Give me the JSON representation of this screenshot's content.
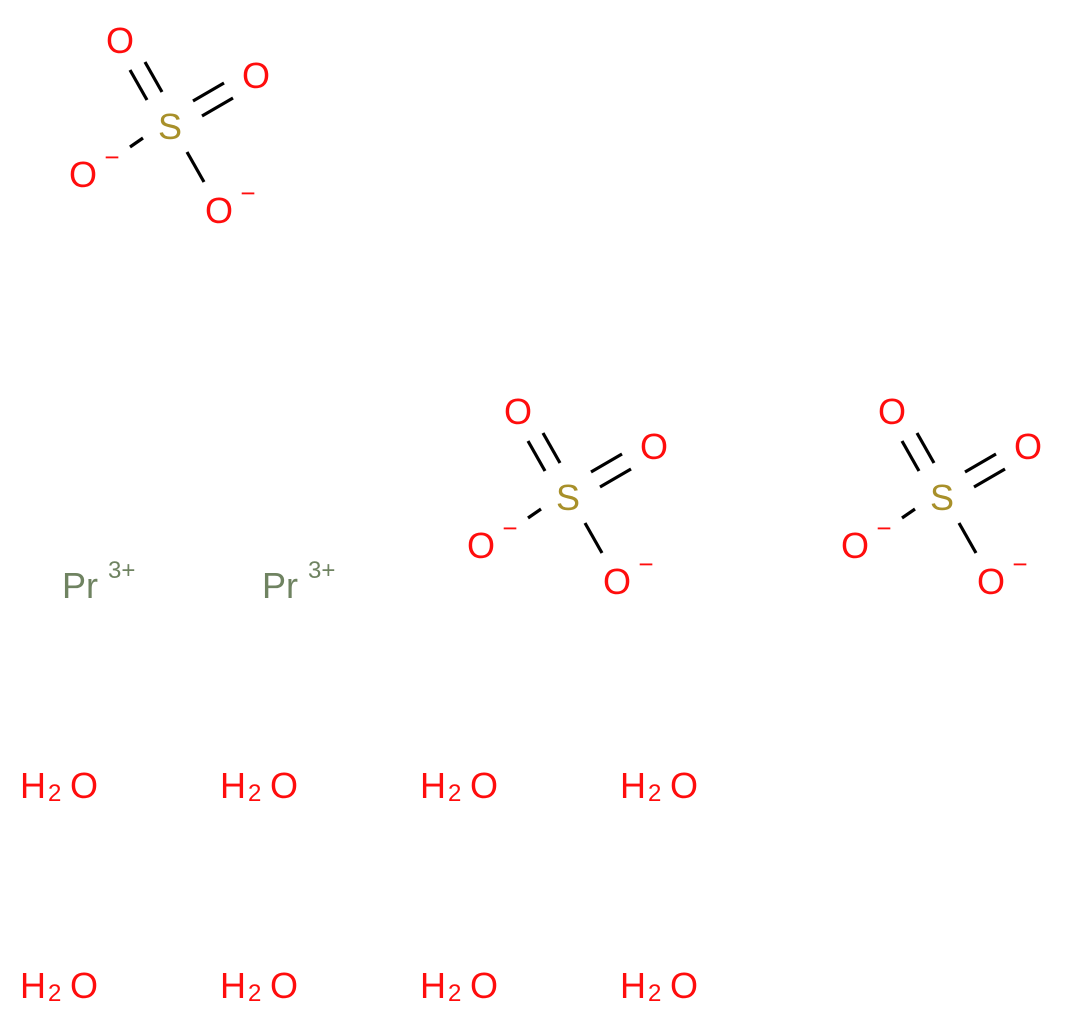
{
  "colors": {
    "oxygen": "#FF0D0D",
    "sulfur": "#A8902A",
    "praseodymium": "#6F8361",
    "bond": "#000000"
  },
  "sulfates": [
    {
      "sulfur": "S",
      "oxygen_double_1": "O",
      "oxygen_double_2": "O",
      "oxygen_single_1": "O",
      "charge_1": "−",
      "oxygen_single_2": "O",
      "charge_2": "−"
    },
    {
      "sulfur": "S",
      "oxygen_double_1": "O",
      "oxygen_double_2": "O",
      "oxygen_single_1": "O",
      "charge_1": "−",
      "oxygen_single_2": "O",
      "charge_2": "−"
    },
    {
      "sulfur": "S",
      "oxygen_double_1": "O",
      "oxygen_double_2": "O",
      "oxygen_single_1": "O",
      "charge_1": "−",
      "oxygen_single_2": "O",
      "charge_2": "−"
    }
  ],
  "cations": [
    {
      "symbol": "Pr",
      "charge": "3+"
    },
    {
      "symbol": "Pr",
      "charge": "3+"
    }
  ],
  "waters": [
    {
      "h": "H",
      "sub": "2",
      "o": "O"
    },
    {
      "h": "H",
      "sub": "2",
      "o": "O"
    },
    {
      "h": "H",
      "sub": "2",
      "o": "O"
    },
    {
      "h": "H",
      "sub": "2",
      "o": "O"
    },
    {
      "h": "H",
      "sub": "2",
      "o": "O"
    },
    {
      "h": "H",
      "sub": "2",
      "o": "O"
    },
    {
      "h": "H",
      "sub": "2",
      "o": "O"
    },
    {
      "h": "H",
      "sub": "2",
      "o": "O"
    }
  ]
}
